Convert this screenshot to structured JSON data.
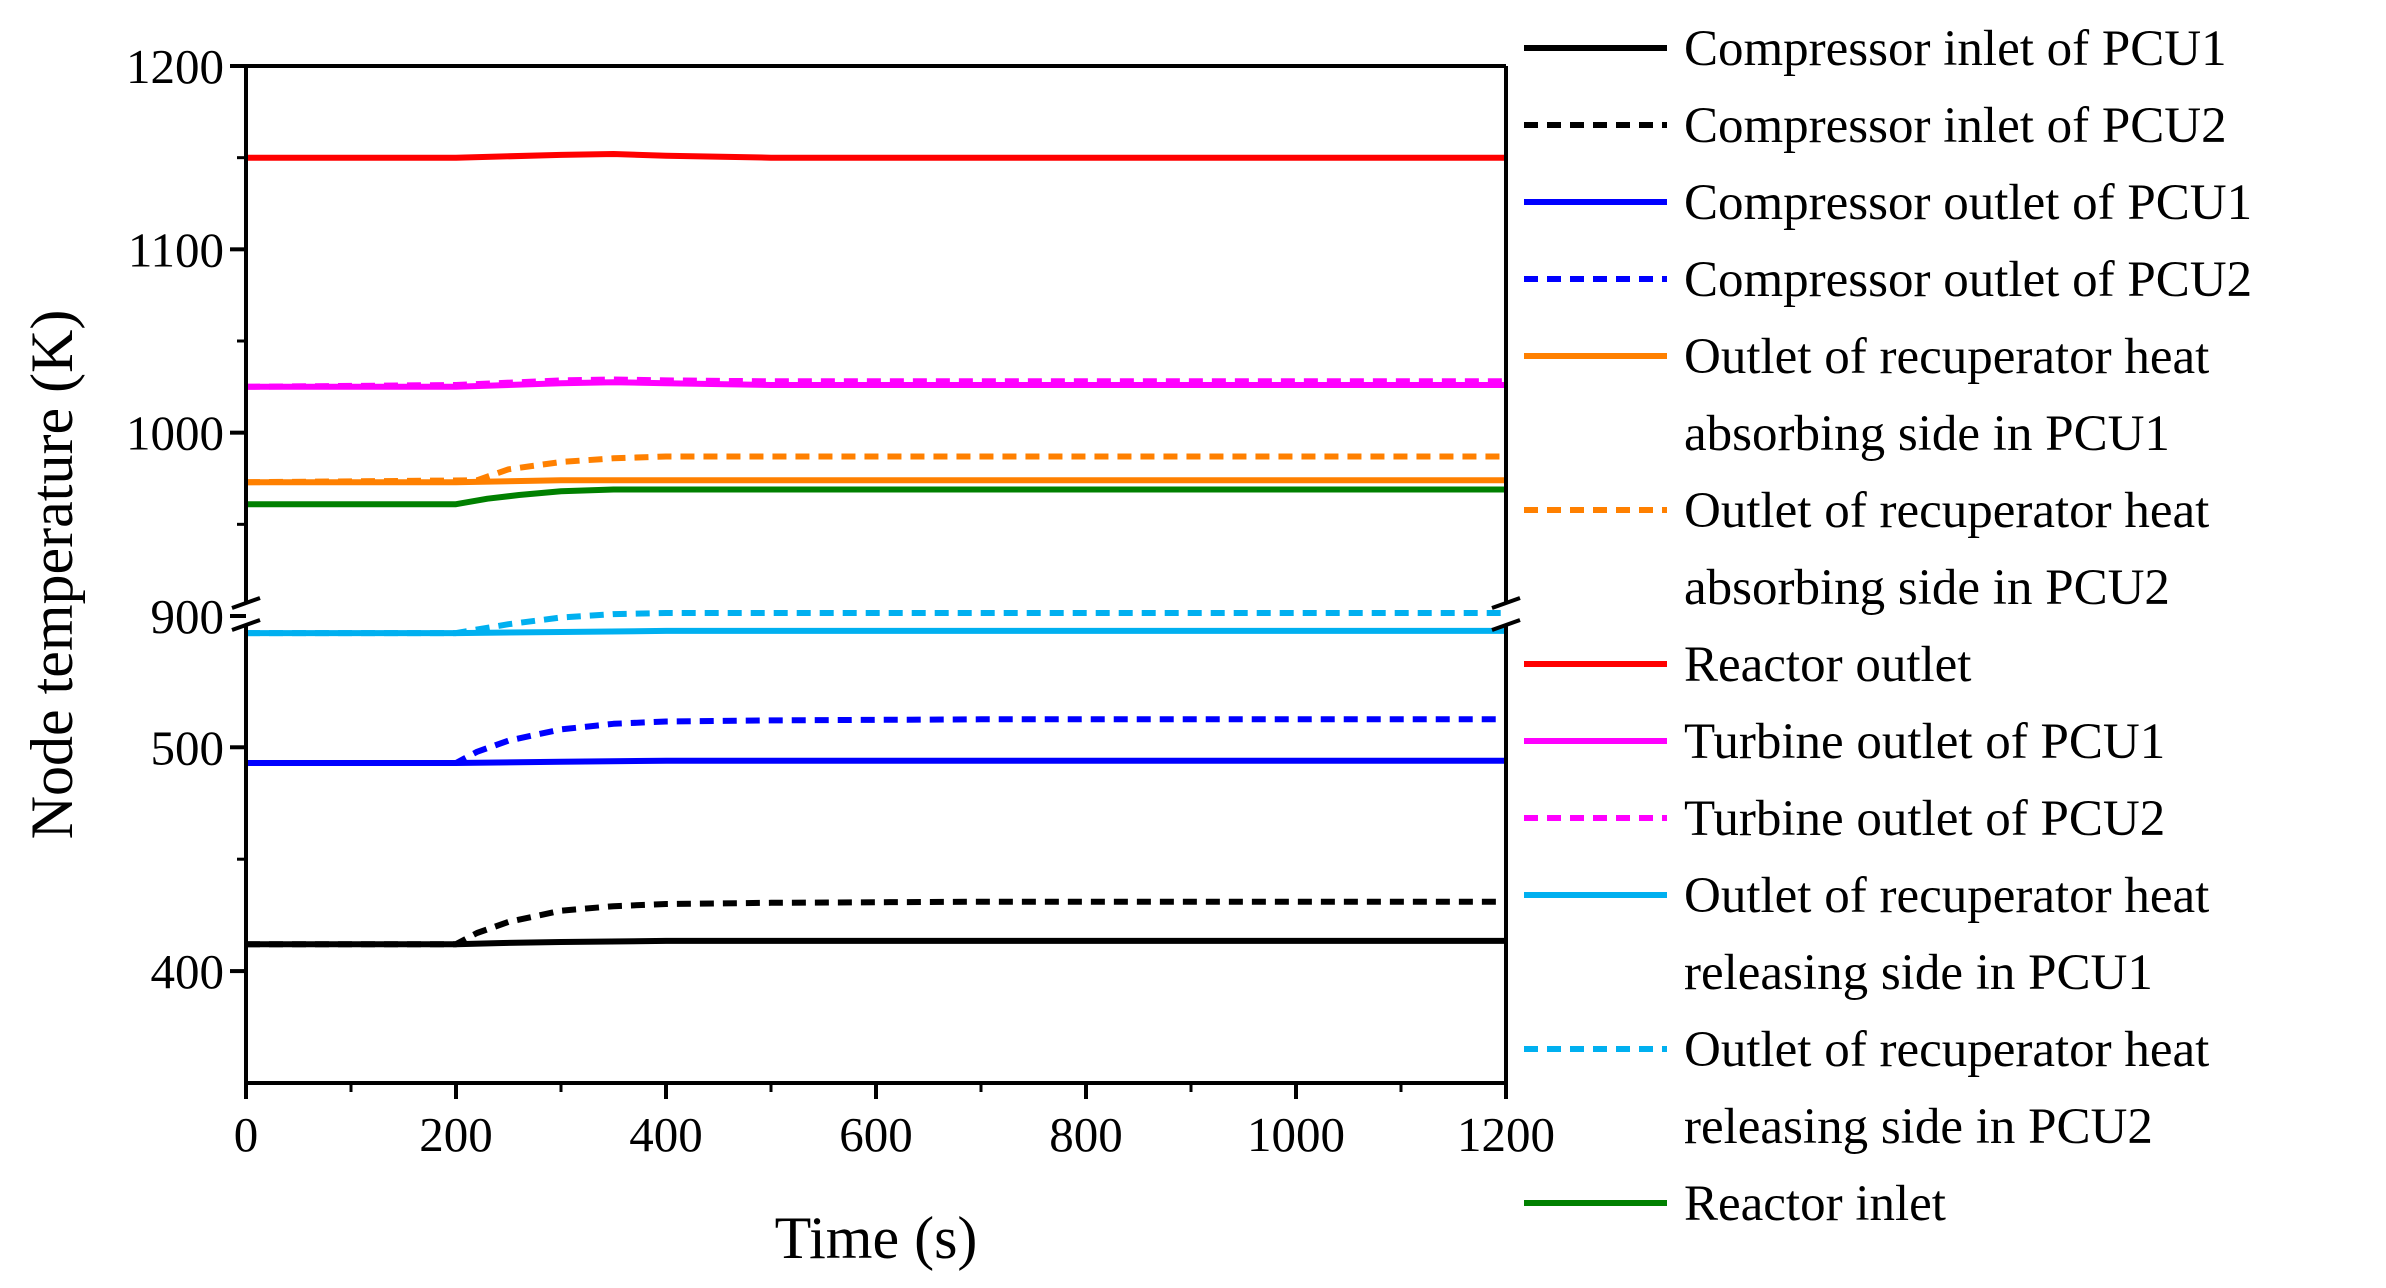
{
  "chart_data": {
    "type": "line",
    "xlabel": "Time (s)",
    "ylabel": "Node temperature (K)",
    "xlim": [
      0,
      1200
    ],
    "x_ticks": [
      0,
      200,
      400,
      600,
      800,
      1000,
      1200
    ],
    "x_tick_labels": [
      "0",
      "200",
      "400",
      "600",
      "800",
      "1000",
      "1200"
    ],
    "y_break": true,
    "y_upper_range": [
      900,
      1200
    ],
    "y_lower_range": [
      350,
      560
    ],
    "y_upper_ticks": [
      900,
      1000,
      1100,
      1200
    ],
    "y_upper_tick_labels": [
      "900",
      "1000",
      "1100",
      "1200"
    ],
    "y_lower_ticks": [
      400,
      500
    ],
    "y_lower_tick_labels": [
      "400",
      "500"
    ],
    "legend_position": "right, outside plot",
    "series": [
      {
        "name": "Compressor inlet of PCU1",
        "color": "#000000",
        "dash": "solid",
        "x": [
          0,
          200,
          240,
          300,
          400,
          600,
          1200
        ],
        "y": [
          412,
          412,
          412.5,
          413,
          413.5,
          413.5,
          413.5
        ]
      },
      {
        "name": "Compressor inlet of PCU2",
        "color": "#000000",
        "dash": "dashed",
        "x": [
          0,
          200,
          220,
          250,
          300,
          350,
          400,
          500,
          700,
          1200
        ],
        "y": [
          412,
          412,
          417,
          422,
          427,
          429,
          430,
          430.5,
          431,
          431
        ]
      },
      {
        "name": "Compressor outlet of PCU1",
        "color": "#0000ff",
        "dash": "solid",
        "x": [
          0,
          200,
          300,
          400,
          600,
          1200
        ],
        "y": [
          493,
          493,
          493.5,
          494,
          494,
          494
        ]
      },
      {
        "name": "Compressor outlet of PCU2",
        "color": "#0000ff",
        "dash": "dashed",
        "x": [
          0,
          200,
          220,
          250,
          300,
          350,
          400,
          500,
          700,
          1200
        ],
        "y": [
          493,
          493,
          498,
          503,
          508,
          510.5,
          511.5,
          512,
          512.5,
          512.5
        ]
      },
      {
        "name": "Outlet of recuperator heat absorbing side in PCU1",
        "color": "#ff8000",
        "dash": "solid",
        "x": [
          0,
          200,
          300,
          400,
          1200
        ],
        "y": [
          973,
          973,
          974,
          974,
          974
        ]
      },
      {
        "name": "Outlet of recuperator heat absorbing side in PCU2",
        "color": "#ff8000",
        "dash": "dashed",
        "x": [
          0,
          220,
          250,
          300,
          350,
          400,
          600,
          1200
        ],
        "y": [
          973,
          974,
          980,
          984,
          986,
          987,
          987,
          987
        ]
      },
      {
        "name": "Reactor outlet",
        "color": "#ff0000",
        "dash": "solid",
        "x": [
          0,
          200,
          300,
          350,
          400,
          500,
          600,
          1200
        ],
        "y": [
          1150,
          1150,
          1151.5,
          1152,
          1151,
          1150,
          1150,
          1150
        ]
      },
      {
        "name": "Turbine outlet of PCU1",
        "color": "#ff00ff",
        "dash": "solid",
        "x": [
          0,
          200,
          300,
          350,
          400,
          500,
          1200
        ],
        "y": [
          1025,
          1025,
          1027,
          1027.5,
          1027,
          1026,
          1026
        ]
      },
      {
        "name": "Turbine outlet of PCU2",
        "color": "#ff00ff",
        "dash": "dashed",
        "x": [
          0,
          200,
          300,
          350,
          400,
          500,
          1200
        ],
        "y": [
          1025,
          1026,
          1028.5,
          1029,
          1028.5,
          1028,
          1028
        ]
      },
      {
        "name": "Outlet of recuperator heat releasing side in PCU1",
        "color": "#00b0f0",
        "dash": "solid",
        "x": [
          0,
          200,
          300,
          400,
          1200
        ],
        "y": [
          551,
          551,
          551.5,
          552,
          552
        ]
      },
      {
        "name": "Outlet of recuperator heat releasing side in PCU2",
        "color": "#00b0f0",
        "dash": "dashed",
        "x": [
          0,
          200,
          250,
          300,
          350,
          400,
          600,
          1200
        ],
        "y": [
          551,
          551,
          555,
          558,
          559.5,
          560,
          560,
          560
        ]
      },
      {
        "name": "Reactor inlet",
        "color": "#008000",
        "dash": "solid",
        "x": [
          0,
          200,
          230,
          260,
          300,
          350,
          400,
          1200
        ],
        "y": [
          961,
          961,
          964,
          966,
          968,
          969,
          969,
          969
        ]
      }
    ]
  }
}
